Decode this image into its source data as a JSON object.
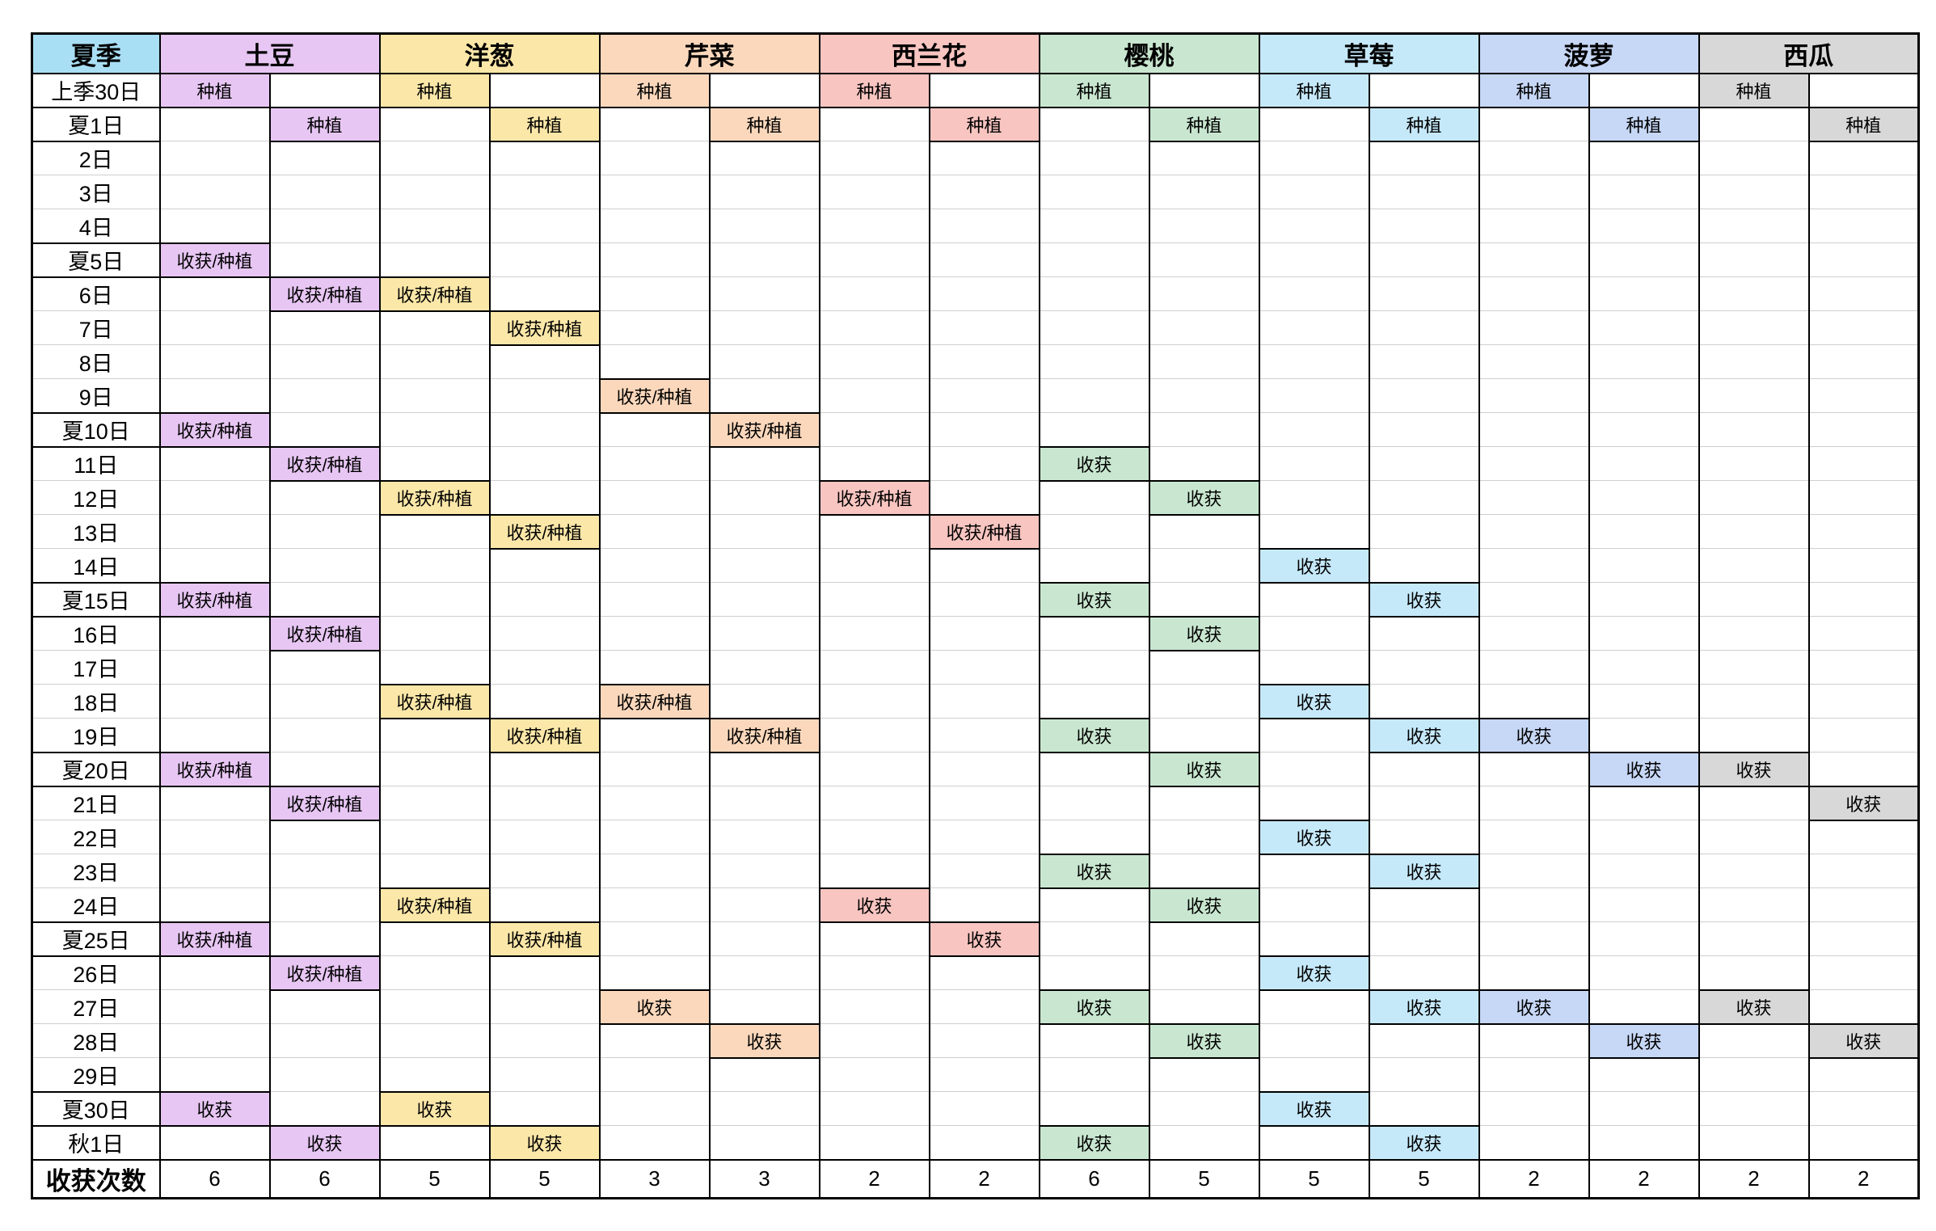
{
  "sheet": {
    "background": "#ffffff",
    "grid_line_color": "#cfcfcf",
    "border_color": "#000000"
  },
  "table": {
    "corner_label": "夏季",
    "corner_color": "#A9DFF5",
    "labels": {
      "P": "种植",
      "H": "收获",
      "HP": "收获/种植"
    },
    "crops": [
      {
        "name": "土豆",
        "color": "#E7C6F3"
      },
      {
        "name": "洋葱",
        "color": "#FBE7A8"
      },
      {
        "name": "芹菜",
        "color": "#FBD8BC"
      },
      {
        "name": "西兰花",
        "color": "#F8C5C1"
      },
      {
        "name": "樱桃",
        "color": "#C9E7D0"
      },
      {
        "name": "草莓",
        "color": "#C6E9FA"
      },
      {
        "name": "菠萝",
        "color": "#C7D7F6"
      },
      {
        "name": "西瓜",
        "color": "#D8D8D8"
      }
    ],
    "rows": [
      {
        "day": "上季30日",
        "major": true,
        "cells": {
          "0": "P",
          "2": "P",
          "4": "P",
          "6": "P",
          "8": "P",
          "10": "P",
          "12": "P",
          "14": "P"
        }
      },
      {
        "day": "夏1日",
        "major": true,
        "cells": {
          "1": "P",
          "3": "P",
          "5": "P",
          "7": "P",
          "9": "P",
          "11": "P",
          "13": "P",
          "15": "P"
        }
      },
      {
        "day": "2日",
        "major": false,
        "cells": {}
      },
      {
        "day": "3日",
        "major": false,
        "cells": {}
      },
      {
        "day": "4日",
        "major": false,
        "cells": {}
      },
      {
        "day": "夏5日",
        "major": true,
        "cells": {
          "0": "HP"
        }
      },
      {
        "day": "6日",
        "major": false,
        "cells": {
          "1": "HP",
          "2": "HP"
        }
      },
      {
        "day": "7日",
        "major": false,
        "cells": {
          "3": "HP"
        }
      },
      {
        "day": "8日",
        "major": false,
        "cells": {}
      },
      {
        "day": "9日",
        "major": false,
        "cells": {
          "4": "HP"
        }
      },
      {
        "day": "夏10日",
        "major": true,
        "cells": {
          "0": "HP",
          "5": "HP"
        }
      },
      {
        "day": "11日",
        "major": false,
        "cells": {
          "1": "HP",
          "8": "H"
        }
      },
      {
        "day": "12日",
        "major": false,
        "cells": {
          "2": "HP",
          "6": "HP",
          "9": "H"
        }
      },
      {
        "day": "13日",
        "major": false,
        "cells": {
          "3": "HP",
          "7": "HP"
        }
      },
      {
        "day": "14日",
        "major": false,
        "cells": {
          "10": "H"
        }
      },
      {
        "day": "夏15日",
        "major": true,
        "cells": {
          "0": "HP",
          "8": "H",
          "11": "H"
        }
      },
      {
        "day": "16日",
        "major": false,
        "cells": {
          "1": "HP",
          "9": "H"
        }
      },
      {
        "day": "17日",
        "major": false,
        "cells": {}
      },
      {
        "day": "18日",
        "major": false,
        "cells": {
          "2": "HP",
          "4": "HP",
          "10": "H"
        }
      },
      {
        "day": "19日",
        "major": false,
        "cells": {
          "3": "HP",
          "5": "HP",
          "8": "H",
          "11": "H",
          "12": "H"
        }
      },
      {
        "day": "夏20日",
        "major": true,
        "cells": {
          "0": "HP",
          "9": "H",
          "13": "H",
          "14": "H"
        }
      },
      {
        "day": "21日",
        "major": false,
        "cells": {
          "1": "HP",
          "15": "H"
        }
      },
      {
        "day": "22日",
        "major": false,
        "cells": {
          "10": "H"
        }
      },
      {
        "day": "23日",
        "major": false,
        "cells": {
          "8": "H",
          "11": "H"
        }
      },
      {
        "day": "24日",
        "major": false,
        "cells": {
          "2": "HP",
          "6": "H",
          "9": "H"
        }
      },
      {
        "day": "夏25日",
        "major": true,
        "cells": {
          "0": "HP",
          "3": "HP",
          "7": "H"
        }
      },
      {
        "day": "26日",
        "major": false,
        "cells": {
          "1": "HP",
          "10": "H"
        }
      },
      {
        "day": "27日",
        "major": false,
        "cells": {
          "4": "H",
          "8": "H",
          "11": "H",
          "12": "H",
          "14": "H"
        }
      },
      {
        "day": "28日",
        "major": false,
        "cells": {
          "5": "H",
          "9": "H",
          "13": "H",
          "15": "H"
        }
      },
      {
        "day": "29日",
        "major": false,
        "cells": {}
      },
      {
        "day": "夏30日",
        "major": true,
        "cells": {
          "0": "H",
          "2": "H",
          "10": "H"
        }
      },
      {
        "day": "秋1日",
        "major": true,
        "cells": {
          "1": "H",
          "3": "H",
          "8": "H",
          "11": "H"
        }
      }
    ],
    "footer": {
      "label": "收获次数",
      "counts": [
        6,
        6,
        5,
        5,
        3,
        3,
        2,
        2,
        6,
        5,
        5,
        5,
        2,
        2,
        2,
        2
      ]
    }
  }
}
